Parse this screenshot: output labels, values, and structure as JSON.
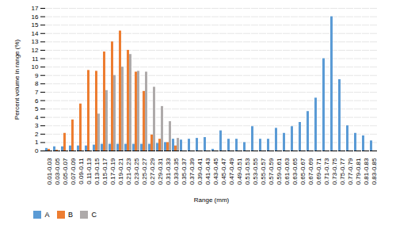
{
  "chart_data": {
    "type": "bar",
    "xlabel": "Range (mm)",
    "ylabel": "Percent volume in range (%)",
    "categories": [
      "0.01-0.03",
      "0.03-0.05",
      "0.05-0.07",
      "0.07-0.09",
      "0.09-0.11",
      "0.11-0.13",
      "0.13-0.15",
      "0.15-0.17",
      "0.17-0.19",
      "0.19-0.21",
      "0.21-0.23",
      "0.23-0.25",
      "0.25-0.27",
      "0.27-0.29",
      "0.29-0.31",
      "0.31-0.33",
      "0.33-0.35",
      "0.35-0.37",
      "0.37-0.39",
      "0.39-0.41",
      "0.41-0.43",
      "0.43-0.45",
      "0.45-0.47",
      "0.47-0.49",
      "0.49-0.51",
      "0.51-0.53",
      "0.53-0.55",
      "0.55-0.57",
      "0.57-0.59",
      "0.59-0.61",
      "0.61-0.63",
      "0.63-0.65",
      "0.65-0.67",
      "0.67-0.69",
      "0.69-0.71",
      "0.71-0.73",
      "0.73-0.75",
      "0.75-0.77",
      "0.77-0.79",
      "0.79-0.81",
      "0.81-0.83",
      "0.83-0.85"
    ],
    "series": [
      {
        "name": "A",
        "color": "#5B9BD5",
        "values": [
          0.3,
          0.5,
          0.5,
          0.6,
          0.6,
          0.6,
          0.7,
          0.8,
          0.8,
          0.8,
          0.8,
          0.8,
          0.8,
          0.8,
          0.9,
          1.0,
          1.4,
          1.3,
          1.4,
          1.5,
          1.6,
          0.2,
          2.4,
          1.4,
          1.4,
          1.0,
          2.9,
          1.4,
          1.4,
          2.7,
          2.1,
          2.9,
          3.4,
          4.7,
          6.3,
          11.0,
          16.0,
          8.5,
          3.0,
          2.1,
          1.8,
          1.2
        ]
      },
      {
        "name": "B",
        "color": "#ED7D31",
        "values": [
          0.2,
          0.1,
          2.1,
          3.7,
          5.6,
          9.6,
          9.5,
          11.8,
          13.0,
          14.3,
          12.0,
          9.4,
          7.1,
          1.9,
          1.4,
          1.0,
          0.6,
          0.0,
          0.0,
          0.0,
          0.0,
          0.0,
          0.0,
          0.0,
          0.0,
          0.0,
          0.0,
          0.0,
          0.0,
          0.0,
          0.0,
          0.0,
          0.0,
          0.0,
          0.0,
          0.0,
          0.0,
          0.0,
          0.0,
          0.0,
          0.0,
          0.0
        ]
      },
      {
        "name": "C",
        "color": "#AEAAAA",
        "values": [
          0.0,
          0.0,
          0.0,
          0.0,
          0.0,
          0.0,
          4.4,
          7.2,
          9.0,
          10.0,
          11.5,
          9.5,
          9.4,
          7.6,
          5.3,
          3.5,
          1.5,
          0.0,
          0.0,
          0.0,
          0.0,
          0.0,
          0.0,
          0.0,
          0.0,
          0.0,
          0.0,
          0.0,
          0.0,
          0.0,
          0.0,
          0.0,
          0.0,
          0.0,
          0.0,
          0.0,
          0.0,
          0.0,
          0.0,
          0.0,
          0.0,
          0.0
        ]
      }
    ],
    "ylim": [
      0,
      17
    ],
    "yticks": [
      0,
      1,
      2,
      3,
      4,
      5,
      6,
      7,
      8,
      9,
      10,
      11,
      12,
      13,
      14,
      15,
      16,
      17
    ],
    "grid": true,
    "legend": "bottom"
  }
}
